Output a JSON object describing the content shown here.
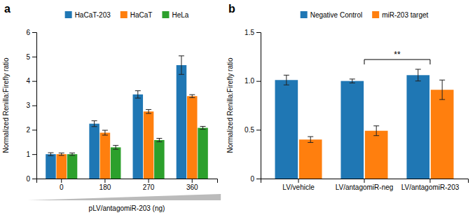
{
  "chart_data": [
    {
      "type": "bar",
      "title": "a",
      "categories": [
        "0",
        "180",
        "270",
        "360"
      ],
      "series": [
        {
          "name": "HaCaT-203",
          "values": [
            1.0,
            2.25,
            3.45,
            4.65
          ],
          "errors": [
            0.06,
            0.12,
            0.15,
            0.38
          ]
        },
        {
          "name": "HaCaT",
          "values": [
            1.0,
            1.88,
            2.75,
            3.38
          ],
          "errors": [
            0.05,
            0.1,
            0.08,
            0.06
          ]
        },
        {
          "name": "HeLa",
          "values": [
            1.0,
            1.28,
            1.58,
            2.08
          ],
          "errors": [
            0.05,
            0.08,
            0.07,
            0.06
          ]
        }
      ],
      "ylim": [
        0,
        6
      ],
      "yticks": [
        0,
        1,
        2,
        3,
        4,
        5,
        6
      ],
      "ylabel": "Normalized Renilla:Firefly ratio",
      "xlabel": "pLV/antagomiR-203 (ng)",
      "legend": "top",
      "grid": false
    },
    {
      "type": "bar",
      "title": "b",
      "categories": [
        "LV/vehicle",
        "LV/antagomiR-neg",
        "LV/antagomiR-203"
      ],
      "series": [
        {
          "name": "Negative Control",
          "values": [
            1.01,
            1.0,
            1.06
          ],
          "errors": [
            0.05,
            0.02,
            0.06
          ]
        },
        {
          "name": "miR-203 target",
          "values": [
            0.4,
            0.49,
            0.91
          ],
          "errors": [
            0.03,
            0.05,
            0.1
          ]
        }
      ],
      "ylim": [
        0,
        1.5
      ],
      "yticks": [
        0,
        0.5,
        {
          "value": 1.0,
          "label": "1.0"
        },
        1.5
      ],
      "ylabel": "Normalized Renilla:Firefly ratio",
      "annotations": [
        {
          "text": "**",
          "x1": "LV/antagomiR-neg",
          "x2": "LV/antagomiR-203",
          "y": 1.22
        }
      ],
      "legend": "top",
      "grid": false
    }
  ]
}
